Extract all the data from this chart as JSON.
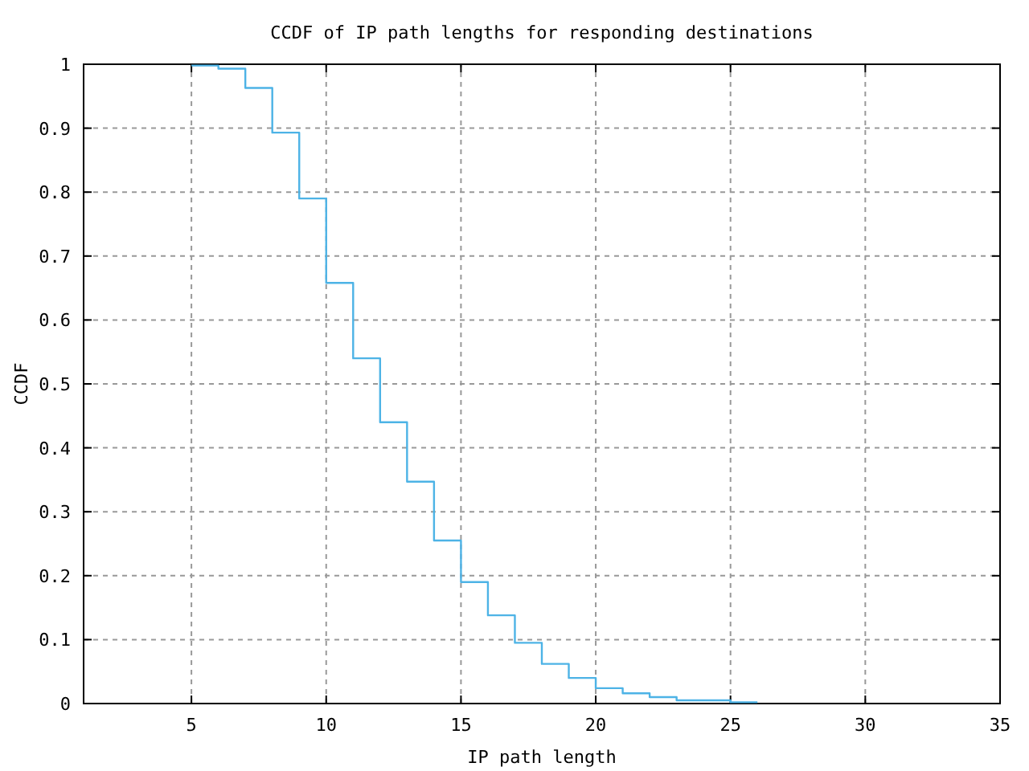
{
  "chart_data": {
    "type": "step",
    "title": "CCDF of IP path lengths for responding destinations",
    "xlabel": "IP path length",
    "ylabel": "CCDF",
    "x": [
      5,
      6,
      7,
      8,
      9,
      10,
      11,
      12,
      13,
      14,
      15,
      16,
      17,
      18,
      19,
      20,
      21,
      22,
      23,
      24,
      25,
      26
    ],
    "series": [
      {
        "color": "#4db3e6",
        "values": [
          0.998,
          0.993,
          0.963,
          0.893,
          0.79,
          0.658,
          0.54,
          0.44,
          0.347,
          0.255,
          0.19,
          0.138,
          0.095,
          0.062,
          0.04,
          0.024,
          0.016,
          0.01,
          0.005,
          0.005,
          0.002,
          0.002
        ]
      }
    ],
    "xlim": [
      1,
      35
    ],
    "xticks": [
      5,
      10,
      15,
      20,
      25,
      30,
      35
    ],
    "ylim": [
      0,
      1
    ],
    "yticks": [
      0,
      0.1,
      0.2,
      0.3,
      0.4,
      0.5,
      0.6,
      0.7,
      0.8,
      0.9,
      1
    ],
    "grid": true,
    "line_style": "solid",
    "marker": "none"
  }
}
